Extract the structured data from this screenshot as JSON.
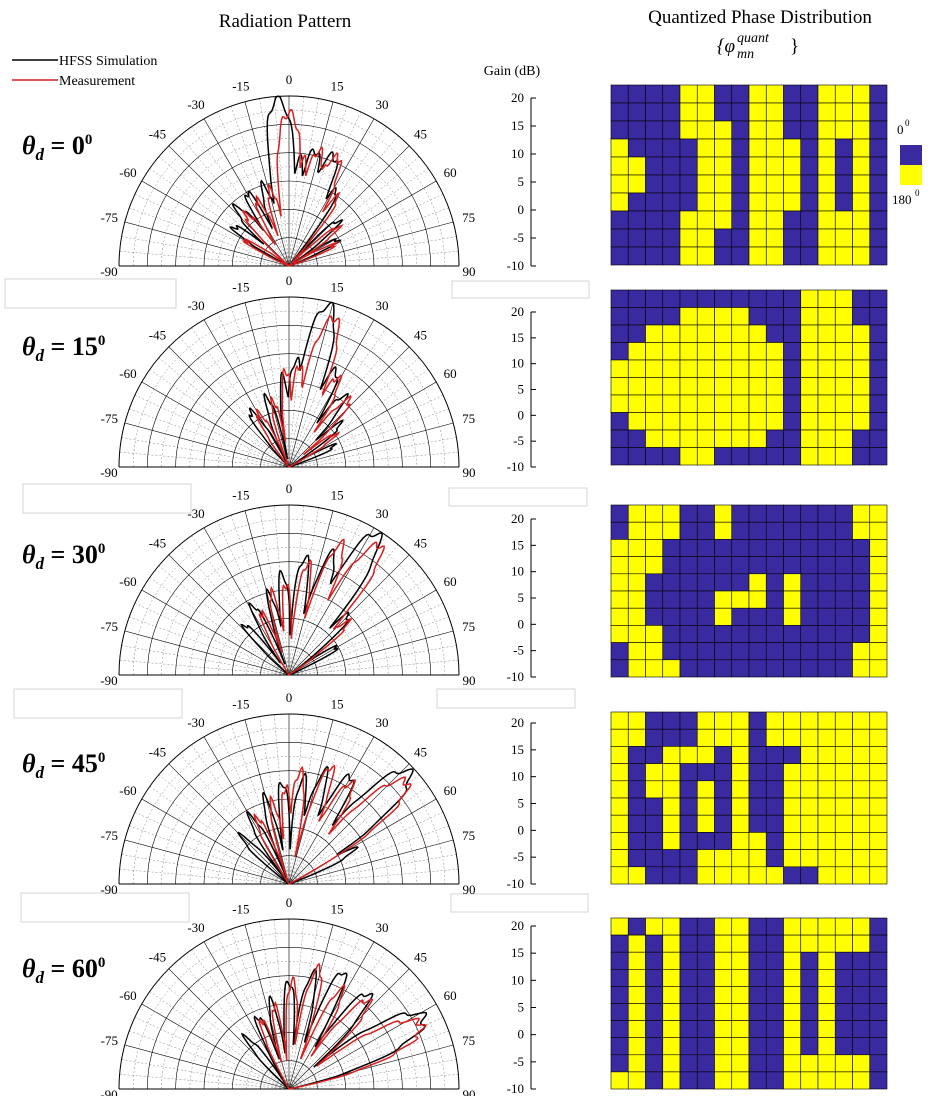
{
  "titles": {
    "radiation": "Radiation Pattern",
    "phase": "Quantized Phase Distribution",
    "phase_symbol": "{φ",
    "phase_symbol_sub": "mn",
    "phase_symbol_sup": "quant",
    "phase_symbol_end": "}"
  },
  "legend": [
    {
      "label": "HFSS Simulation",
      "color": "#000000"
    },
    {
      "label": "Measurement",
      "color": "#d62020"
    }
  ],
  "gain_axis_label": "Gain (dB)",
  "phase_legend": [
    {
      "label": "0",
      "sup": "0",
      "color": "#3a2aa0"
    },
    {
      "label": "180",
      "sup": "0",
      "color": "#ffff00"
    }
  ],
  "polar_angle_labels": [
    "-90",
    "-75",
    "-60",
    "-45",
    "-30",
    "-15",
    "0",
    "15",
    "30",
    "45",
    "60",
    "75",
    "90"
  ],
  "colors": {
    "phase0": "#3a2aa0",
    "phase180": "#ffff00",
    "sim": "#000000",
    "meas": "#d62020"
  },
  "chart_data": [
    {
      "type": "polar",
      "label_prefix": "θ",
      "label_sub": "d",
      "label_eq": " = ",
      "label_value": "0",
      "label_sup": "0",
      "steer_deg": 0,
      "rlim": [
        -10,
        20
      ],
      "r_ticks": [
        "20",
        "15",
        "10",
        "5",
        "0",
        "-5",
        "-10"
      ],
      "series": [
        {
          "name": "HFSS Simulation",
          "lobes": [
            [
              -4,
              19.5,
              5
            ],
            [
              6,
              9,
              4
            ],
            [
              13,
              11,
              5
            ],
            [
              22,
              11,
              6
            ],
            [
              32,
              6,
              4
            ],
            [
              -18,
              5,
              5
            ],
            [
              -30,
              5,
              5
            ],
            [
              -42,
              4,
              6
            ],
            [
              -55,
              2,
              6
            ],
            [
              48,
              2,
              5
            ],
            [
              62,
              0,
              5
            ]
          ]
        },
        {
          "name": "Measurement",
          "lobes": [
            [
              0,
              17,
              5
            ],
            [
              8,
              9,
              4
            ],
            [
              15,
              11,
              5
            ],
            [
              24,
              11,
              6
            ],
            [
              35,
              5,
              4
            ],
            [
              -14,
              4,
              5
            ],
            [
              -26,
              3,
              5
            ],
            [
              -40,
              2,
              6
            ],
            [
              52,
              1,
              5
            ],
            [
              65,
              -1,
              5
            ],
            [
              -60,
              -1,
              5
            ]
          ]
        }
      ],
      "phase_grid": [
        "0000110011001110",
        "0000110011001110",
        "0000111011001110",
        "1000011011101010",
        "1100011011101010",
        "1100011011101010",
        "1000011011101010",
        "0000111011001110",
        "0000110011001110",
        "0000110011001110"
      ]
    },
    {
      "type": "polar",
      "label_prefix": "θ",
      "label_sub": "d",
      "label_eq": " = ",
      "label_value": "15",
      "label_sup": "0",
      "steer_deg": 15,
      "rlim": [
        -10,
        20
      ],
      "r_ticks": [
        "20",
        "15",
        "10",
        "5",
        "0",
        "-5",
        "-10"
      ],
      "series": [
        {
          "name": "HFSS Simulation",
          "lobes": [
            [
              14,
              19.5,
              5
            ],
            [
              4,
              9,
              4
            ],
            [
              -4,
              6,
              4
            ],
            [
              26,
              9,
              5
            ],
            [
              38,
              6,
              5
            ],
            [
              -18,
              3,
              5
            ],
            [
              -35,
              2,
              6
            ],
            [
              50,
              2,
              5
            ],
            [
              65,
              -1,
              5
            ]
          ]
        },
        {
          "name": "Measurement",
          "lobes": [
            [
              17,
              17.5,
              5
            ],
            [
              6,
              8,
              4
            ],
            [
              -2,
              7,
              4
            ],
            [
              29,
              8,
              5
            ],
            [
              42,
              6,
              5
            ],
            [
              -14,
              2,
              5
            ],
            [
              -30,
              1,
              6
            ],
            [
              55,
              0,
              5
            ]
          ]
        }
      ],
      "phase_grid": [
        "0000000000011100",
        "0000111100011100",
        "0011111110011110",
        "0111111111011110",
        "1111111111011110",
        "1111111111011110",
        "1111111111011110",
        "0111111111011110",
        "0011111110011100",
        "0000110000011100"
      ]
    },
    {
      "type": "polar",
      "label_prefix": "θ",
      "label_sub": "d",
      "label_eq": " = ",
      "label_value": "30",
      "label_sup": "0",
      "steer_deg": 30,
      "rlim": [
        -10,
        20
      ],
      "r_ticks": [
        "20",
        "15",
        "10",
        "5",
        "0",
        "-5",
        "-10"
      ],
      "series": [
        {
          "name": "HFSS Simulation",
          "lobes": [
            [
              32,
              19.5,
              5
            ],
            [
              20,
              13,
              4
            ],
            [
              8,
              11,
              4
            ],
            [
              -4,
              8,
              4
            ],
            [
              -14,
              5,
              4
            ],
            [
              45,
              5,
              5
            ],
            [
              -28,
              4,
              5
            ],
            [
              -42,
              2,
              5
            ],
            [
              60,
              0,
              5
            ]
          ]
        },
        {
          "name": "Measurement",
          "lobes": [
            [
              35,
              18,
              5
            ],
            [
              22,
              15,
              4
            ],
            [
              10,
              10,
              4
            ],
            [
              -2,
              6,
              4
            ],
            [
              -12,
              5,
              4
            ],
            [
              48,
              4,
              5
            ],
            [
              -24,
              2,
              5
            ]
          ]
        }
      ],
      "phase_grid": [
        "0111001000000011",
        "0111001000000011",
        "1110000000000001",
        "1110000000000001",
        "1100000010100001",
        "1100001110100001",
        "1100001000100001",
        "1110000000000001",
        "0110000000000011",
        "0111000000000011"
      ]
    },
    {
      "type": "polar",
      "label_prefix": "θ",
      "label_sub": "d",
      "label_eq": " = ",
      "label_value": "45",
      "label_sup": "0",
      "steer_deg": 45,
      "rlim": [
        -10,
        20
      ],
      "r_ticks": [
        "20",
        "15",
        "10",
        "5",
        "0",
        "-5",
        "-10"
      ],
      "series": [
        {
          "name": "HFSS Simulation",
          "lobes": [
            [
              47,
              19,
              6
            ],
            [
              30,
              12,
              5
            ],
            [
              18,
              11,
              4
            ],
            [
              8,
              9,
              4
            ],
            [
              -4,
              8,
              4
            ],
            [
              -16,
              6,
              4
            ],
            [
              -30,
              4,
              5
            ],
            [
              62,
              3,
              5
            ],
            [
              -45,
              2,
              5
            ]
          ]
        },
        {
          "name": "Measurement",
          "lobes": [
            [
              49,
              17.5,
              6
            ],
            [
              32,
              11,
              5
            ],
            [
              20,
              12,
              4
            ],
            [
              6,
              10,
              4
            ],
            [
              -2,
              7,
              4
            ],
            [
              -12,
              5,
              4
            ],
            [
              -26,
              3,
              5
            ]
          ]
        }
      ],
      "phase_grid": [
        "1100011101111111",
        "1100011101111111",
        "1001110100011111",
        "1011000100111111",
        "1011010100111111",
        "1001010100111111",
        "1001010100111111",
        "1001000110111111",
        "1000011110111111",
        "1100011111001111"
      ]
    },
    {
      "type": "polar",
      "label_prefix": "θ",
      "label_sub": "d",
      "label_eq": " = ",
      "label_value": "60",
      "label_sup": "0",
      "steer_deg": 60,
      "rlim": [
        -10,
        20
      ],
      "r_ticks": [
        "20",
        "15",
        "10",
        "5",
        "0",
        "-5",
        "-10"
      ],
      "series": [
        {
          "name": "HFSS Simulation",
          "lobes": [
            [
              62,
              17,
              7
            ],
            [
              40,
              12,
              5
            ],
            [
              25,
              13,
              4
            ],
            [
              12,
              11,
              4
            ],
            [
              0,
              9,
              4
            ],
            [
              -12,
              6,
              4
            ],
            [
              -24,
              4,
              5
            ],
            [
              -40,
              2,
              5
            ]
          ]
        },
        {
          "name": "Measurement",
          "lobes": [
            [
              64,
              16,
              7
            ],
            [
              42,
              11,
              5
            ],
            [
              28,
              10,
              4
            ],
            [
              14,
              12,
              4
            ],
            [
              2,
              9,
              4
            ],
            [
              -10,
              5,
              4
            ],
            [
              -22,
              3,
              5
            ]
          ]
        }
      ],
      "phase_grid": [
        "1011001100111110",
        "0101001100111110",
        "0101001100101000",
        "0101001100101000",
        "0101001100101000",
        "0101001100101000",
        "0101001100101000",
        "0101001100101000",
        "0101001100111110",
        "1101001100111110"
      ]
    }
  ]
}
